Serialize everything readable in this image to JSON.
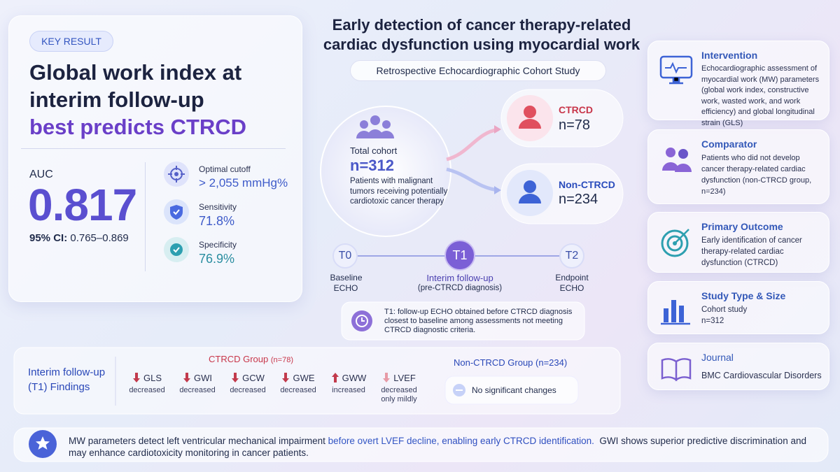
{
  "title": [
    "Early detection of cancer therapy-related",
    "cardiac dysfunction using myocardial work"
  ],
  "subtitle": "Retrospective Echocardiographic Cohort Study",
  "key_result": {
    "badge": "KEY RESULT",
    "headline": [
      "Global work index at",
      "interim follow-up"
    ],
    "highlight": "best predicts CTRCD",
    "auc_label": "AUC",
    "auc_value": "0.817",
    "ci_label": "95% CI:",
    "ci_value": "0.765–0.869",
    "metrics": [
      {
        "label": "Optimal cutoff",
        "value": "> 2,055 mmHg%"
      },
      {
        "label": "Sensitivity",
        "value": "71.8%"
      },
      {
        "label": "Specificity",
        "value": "76.9%"
      }
    ]
  },
  "cohort": {
    "label": "Total cohort",
    "n": "n=312",
    "description": "Patients with malignant tumors receiving potentially cardiotoxic cancer therapy"
  },
  "groups": [
    {
      "name": "CTRCD",
      "n": "n=78"
    },
    {
      "name": "Non-CTRCD",
      "n": "n=234"
    }
  ],
  "timeline": [
    {
      "code": "T0",
      "label": "Baseline ECHO"
    },
    {
      "code": "T1",
      "label": "Interim follow-up",
      "sublabel": "(pre-CTRCD diagnosis)"
    },
    {
      "code": "T2",
      "label": "Endpoint ECHO"
    }
  ],
  "timeline_note": "T1:  follow-up ECHO obtained before CTRCD diagnosis closest to baseline among assessments not meeting CTRCD diagnostic criteria.",
  "findings": {
    "title": "Interim follow-up (T1) Findings",
    "ctrcd_group": "CTRCD Group",
    "ctrcd_n": "(n=78)",
    "params": [
      {
        "name": "GLS",
        "change": "decreased"
      },
      {
        "name": "GWI",
        "change": "decreased"
      },
      {
        "name": "GCW",
        "change": "decreased"
      },
      {
        "name": "GWE",
        "change": "decreased"
      },
      {
        "name": "GWW",
        "change": "increased"
      },
      {
        "name": "LVEF",
        "change": "decreased only mildly"
      }
    ],
    "non_ctrcd_group": "Non-CTRCD Group (n=234)",
    "non_ctrcd_result": "No significant changes"
  },
  "pico": [
    {
      "title": "Intervention",
      "text": "Echocardiographic assessment of myocardial work (MW) parameters (global work index, constructive work, wasted work, and work efficiency) and global longitudinal strain (GLS)"
    },
    {
      "title": "Comparator",
      "text": "Patients who did not develop cancer therapy-related cardiac dysfunction (non-CTRCD group, n=234)"
    },
    {
      "title": "Primary Outcome",
      "text": "Early identification of cancer therapy-related cardiac dysfunction (CTRCD)"
    },
    {
      "title": "Study Type & Size",
      "text": "Cohort study n=312"
    },
    {
      "title": "Journal",
      "text": "BMC Cardiovascular Disorders"
    }
  ],
  "conclusion": [
    "MW parameters detect left ventricular mechanical impairment ",
    "before overt LVEF decline,",
    " ",
    "enabling early CTRCD identification.",
    "  GWI shows superior predictive discrimination and may enhance cardiotoxicity monitoring in cancer patients."
  ]
}
